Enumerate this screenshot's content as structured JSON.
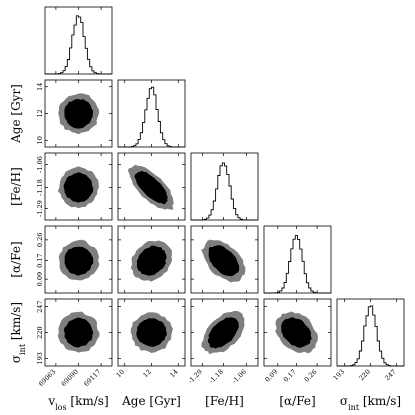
{
  "chart_data": {
    "type": "corner",
    "parameters": [
      {
        "key": "vlos",
        "label_main": "v",
        "label_sub": "los",
        "label_unit": " [km/s]",
        "range": [
          69050,
          69130
        ],
        "ticks": [
          69063,
          69090,
          69117
        ],
        "peak": 69090
      },
      {
        "key": "age",
        "label_main": "Age [Gyr]",
        "label_sub": "",
        "label_unit": "",
        "range": [
          9.5,
          14.5
        ],
        "ticks": [
          10,
          12,
          14
        ],
        "peak": 12
      },
      {
        "key": "feh",
        "label_main": "[Fe/H]",
        "label_sub": "",
        "label_unit": "",
        "range": [
          -1.35,
          -1.0
        ],
        "ticks": [
          -1.29,
          -1.18,
          -1.06
        ],
        "peak": -1.18
      },
      {
        "key": "afe",
        "label_main": "[α/Fe]",
        "label_sub": "",
        "label_unit": "",
        "range": [
          0.03,
          0.32
        ],
        "ticks": [
          0.09,
          0.17,
          0.26
        ],
        "peak": 0.17
      },
      {
        "key": "sint",
        "label_main": "σ",
        "label_sub": "int",
        "label_unit": " [km/s]",
        "range": [
          185,
          255
        ],
        "ticks": [
          193,
          220,
          247
        ],
        "peak": 220
      }
    ],
    "contour_colors": {
      "outer": "#7f7f7f",
      "inner": "#000000"
    },
    "grid": false
  }
}
